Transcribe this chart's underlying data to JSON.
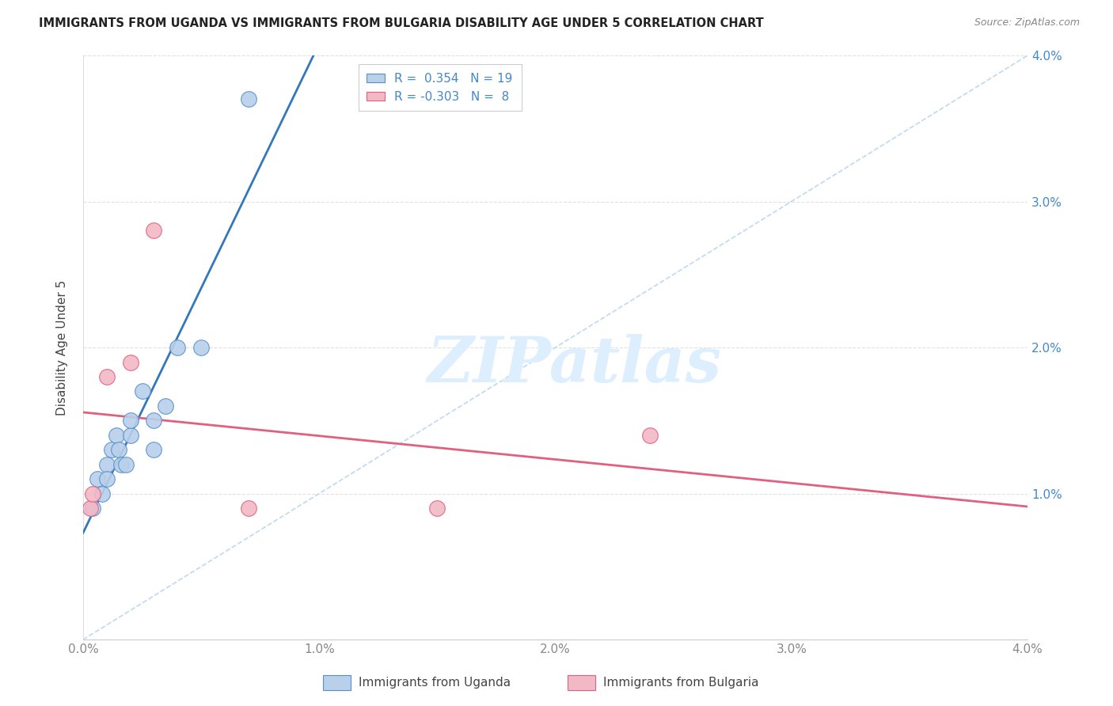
{
  "title": "IMMIGRANTS FROM UGANDA VS IMMIGRANTS FROM BULGARIA DISABILITY AGE UNDER 5 CORRELATION CHART",
  "source": "Source: ZipAtlas.com",
  "ylabel": "Disability Age Under 5",
  "xlim": [
    0.0,
    0.04
  ],
  "ylim": [
    0.0,
    0.04
  ],
  "xticks": [
    0.0,
    0.01,
    0.02,
    0.03,
    0.04
  ],
  "yticks": [
    0.0,
    0.01,
    0.02,
    0.03,
    0.04
  ],
  "xtick_labels": [
    "0.0%",
    "1.0%",
    "2.0%",
    "3.0%",
    "4.0%"
  ],
  "ytick_labels_right": [
    "",
    "1.0%",
    "2.0%",
    "3.0%",
    "4.0%"
  ],
  "r_uganda": 0.354,
  "n_uganda": 19,
  "r_bulgaria": -0.303,
  "n_bulgaria": 8,
  "uganda_color": "#b8d0ea",
  "bulgaria_color": "#f2b8c6",
  "uganda_edge_color": "#5590cc",
  "bulgaria_edge_color": "#e06080",
  "uganda_line_color": "#3378bb",
  "bulgaria_line_color": "#e06080",
  "diagonal_color": "#c0d8f0",
  "watermark_color": "#ddeeff",
  "uganda_x": [
    0.0004,
    0.0006,
    0.0008,
    0.001,
    0.001,
    0.0012,
    0.0014,
    0.0015,
    0.0016,
    0.0018,
    0.002,
    0.002,
    0.0025,
    0.003,
    0.003,
    0.0035,
    0.004,
    0.005,
    0.007
  ],
  "uganda_y": [
    0.009,
    0.011,
    0.01,
    0.012,
    0.011,
    0.013,
    0.014,
    0.013,
    0.012,
    0.012,
    0.014,
    0.015,
    0.017,
    0.013,
    0.015,
    0.016,
    0.02,
    0.02,
    0.037
  ],
  "bulgaria_x": [
    0.0003,
    0.0004,
    0.001,
    0.002,
    0.003,
    0.007,
    0.015,
    0.024
  ],
  "bulgaria_y": [
    0.009,
    0.01,
    0.018,
    0.019,
    0.028,
    0.009,
    0.009,
    0.014
  ],
  "legend_labels": [
    "Immigrants from Uganda",
    "Immigrants from Bulgaria"
  ],
  "background_color": "#ffffff",
  "grid_color": "#e0e0e8",
  "title_color": "#222222",
  "source_color": "#888888",
  "label_color": "#444444",
  "tick_color": "#888888",
  "right_tick_color": "#4488cc"
}
